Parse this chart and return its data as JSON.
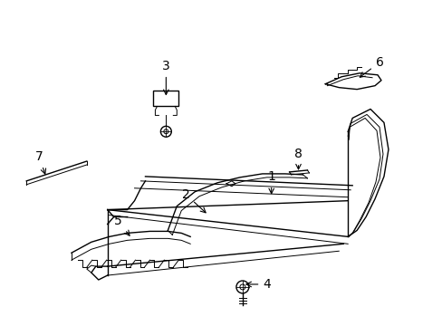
{
  "bg_color": "#ffffff",
  "line_color": "#000000",
  "fig_width": 4.89,
  "fig_height": 3.6,
  "dpi": 100,
  "label_fontsize": 10
}
